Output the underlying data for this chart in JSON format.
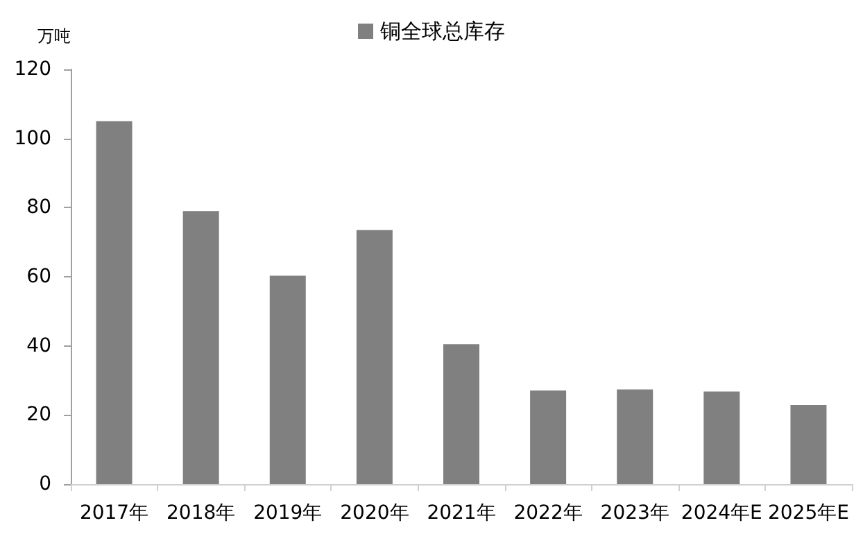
{
  "chart_data": {
    "type": "bar",
    "ylabel": "万吨",
    "categories": [
      "2017年",
      "2018年",
      "2019年",
      "2020年",
      "2021年",
      "2022年",
      "2023年",
      "2024年E",
      "2025年E"
    ],
    "series": [
      {
        "name": "铜全球总库存",
        "color": "#808080",
        "values": [
          105,
          79,
          60.3,
          73.5,
          40.5,
          27.1,
          27.4,
          26.8,
          22.9
        ]
      }
    ],
    "ylim": [
      0,
      120
    ],
    "yticks": [
      0,
      20,
      40,
      60,
      80,
      100,
      120
    ],
    "grid": false,
    "legend": "top"
  }
}
